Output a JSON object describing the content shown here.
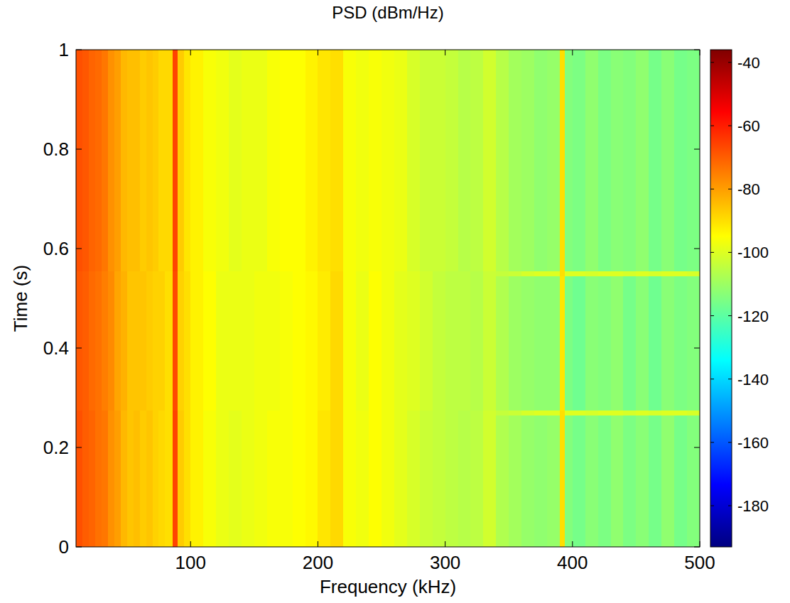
{
  "chart_data": {
    "type": "heatmap",
    "title": "PSD (dBm/Hz)",
    "xlabel": "Frequency (kHz)",
    "ylabel": "Time (s)",
    "xlim": [
      10,
      500
    ],
    "ylim": [
      0,
      1
    ],
    "xticks": [
      100,
      200,
      300,
      400,
      500
    ],
    "yticks": [
      0,
      0.2,
      0.4,
      0.6,
      0.8,
      1
    ],
    "x_edges": [
      10,
      15,
      20,
      25,
      30,
      35,
      40,
      45,
      50,
      55,
      60,
      65,
      70,
      75,
      80,
      86,
      90,
      95,
      100,
      110,
      120,
      130,
      140,
      150,
      160,
      170,
      180,
      190,
      200,
      210,
      220,
      230,
      240,
      250,
      260,
      270,
      280,
      290,
      300,
      310,
      320,
      330,
      340,
      350,
      360,
      370,
      380,
      390,
      394,
      400,
      410,
      420,
      430,
      440,
      450,
      460,
      470,
      480,
      490,
      500
    ],
    "y_edges": [
      0,
      0.265,
      0.275,
      0.545,
      0.555,
      1
    ],
    "cells": [
      [
        -68,
        -70,
        -71,
        -73,
        -74,
        -78,
        -80,
        -84,
        -86,
        -85,
        -87,
        -86,
        -88,
        -89,
        -90,
        -66,
        -87,
        -90,
        -93,
        -96,
        -98,
        -99,
        -98,
        -97,
        -96,
        -96,
        -95,
        -94,
        -91,
        -89,
        -96,
        -97,
        -95,
        -97,
        -99,
        -101,
        -103,
        -104,
        -105,
        -106,
        -105,
        -102,
        -107,
        -109,
        -111,
        -112,
        -111,
        -90,
        -114,
        -116,
        -113,
        -115,
        -112,
        -115,
        -113,
        -116,
        -112,
        -116,
        -114
      ],
      [
        -68,
        -70,
        -71,
        -73,
        -74,
        -78,
        -80,
        -84,
        -86,
        -85,
        -87,
        -86,
        -88,
        -89,
        -90,
        -66,
        -87,
        -90,
        -93,
        -96,
        -98,
        -99,
        -98,
        -97,
        -96,
        -96,
        -95,
        -94,
        -91,
        -89,
        -96,
        -97,
        -95,
        -97,
        -99,
        -101,
        -103,
        -104,
        -105,
        -106,
        -105,
        -102,
        -104,
        -103,
        -101,
        -100,
        -100,
        -90,
        -100,
        -100,
        -101,
        -100,
        -100,
        -101,
        -100,
        -101,
        -100,
        -100,
        -101
      ],
      [
        -69,
        -70,
        -72,
        -73,
        -75,
        -77,
        -81,
        -83,
        -86,
        -86,
        -86,
        -87,
        -88,
        -88,
        -90,
        -67,
        -88,
        -90,
        -93,
        -95,
        -98,
        -98,
        -98,
        -97,
        -97,
        -96,
        -95,
        -94,
        -92,
        -89,
        -96,
        -98,
        -95,
        -97,
        -99,
        -100,
        -102,
        -104,
        -105,
        -105,
        -106,
        -103,
        -107,
        -110,
        -111,
        -112,
        -112,
        -91,
        -115,
        -117,
        -113,
        -114,
        -112,
        -116,
        -113,
        -117,
        -113,
        -115,
        -114
      ],
      [
        -69,
        -70,
        -72,
        -73,
        -75,
        -77,
        -81,
        -83,
        -86,
        -86,
        -86,
        -87,
        -88,
        -88,
        -90,
        -67,
        -88,
        -90,
        -93,
        -95,
        -98,
        -98,
        -98,
        -97,
        -97,
        -96,
        -95,
        -94,
        -92,
        -89,
        -96,
        -98,
        -95,
        -97,
        -99,
        -100,
        -102,
        -104,
        -105,
        -105,
        -106,
        -103,
        -104,
        -103,
        -101,
        -100,
        -100,
        -90,
        -100,
        -100,
        -101,
        -100,
        -100,
        -101,
        -100,
        -101,
        -100,
        -100,
        -101
      ],
      [
        -68,
        -69,
        -71,
        -72,
        -74,
        -78,
        -80,
        -84,
        -85,
        -85,
        -87,
        -86,
        -87,
        -89,
        -89,
        -66,
        -87,
        -91,
        -93,
        -96,
        -97,
        -99,
        -98,
        -98,
        -96,
        -95,
        -95,
        -93,
        -91,
        -90,
        -96,
        -97,
        -96,
        -97,
        -98,
        -101,
        -103,
        -103,
        -104,
        -106,
        -105,
        -102,
        -106,
        -109,
        -110,
        -112,
        -111,
        -90,
        -114,
        -115,
        -112,
        -115,
        -113,
        -114,
        -112,
        -116,
        -113,
        -116,
        -115
      ]
    ],
    "color_range": [
      -193,
      -36
    ],
    "color_ticks": [
      -40,
      -60,
      -80,
      -100,
      -120,
      -140,
      -160,
      -180
    ]
  }
}
